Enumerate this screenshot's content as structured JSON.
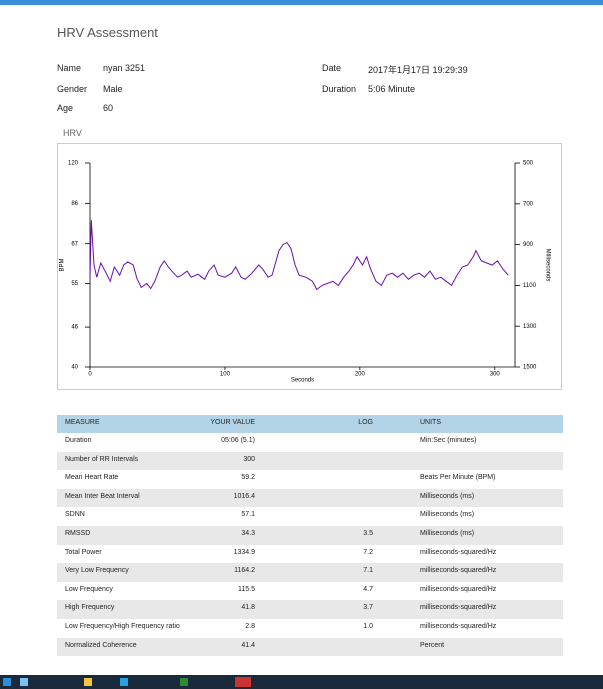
{
  "header": {
    "title": "HRV Assessment"
  },
  "info": [
    {
      "label": "Name",
      "value": "nyan 3251"
    },
    {
      "label": "Date",
      "value": "2017年1月17日 19:29:39"
    },
    {
      "label": "Gender",
      "value": "Male"
    },
    {
      "label": "Duration",
      "value": "5:06 Minute"
    },
    {
      "label": "Age",
      "value": "60"
    }
  ],
  "chart_data": {
    "type": "line",
    "title": "HRV",
    "x_label": "Seconds",
    "y_label": "BPM",
    "y2_label": "Milliseconds",
    "y_scale": "reciprocal",
    "xlim": [
      0,
      315
    ],
    "xticks": [
      0,
      100,
      200,
      300
    ],
    "ylim": [
      40,
      120
    ],
    "yticks": [
      120,
      86,
      67,
      55,
      46,
      40
    ],
    "y2lim": [
      1500,
      500
    ],
    "y2ticks": [
      500,
      700,
      900,
      1100,
      1300,
      1500
    ],
    "x": [
      0,
      1,
      3,
      5,
      8,
      12,
      15,
      18,
      22,
      25,
      28,
      32,
      35,
      38,
      42,
      45,
      48,
      52,
      55,
      58,
      62,
      65,
      68,
      72,
      75,
      80,
      85,
      88,
      92,
      95,
      100,
      105,
      108,
      112,
      115,
      120,
      125,
      128,
      132,
      135,
      140,
      143,
      146,
      149,
      152,
      155,
      160,
      165,
      168,
      172,
      176,
      180,
      184,
      188,
      192,
      195,
      198,
      202,
      205,
      208,
      212,
      216,
      220,
      224,
      228,
      232,
      236,
      240,
      244,
      248,
      252,
      256,
      260,
      264,
      268,
      272,
      276,
      280,
      284,
      286,
      290,
      294,
      298,
      302,
      306,
      310
    ],
    "series": [
      {
        "name": "RR",
        "axis": "y2",
        "color": "#6a0dad",
        "values": [
          1060,
          780,
          1000,
          1060,
          990,
          1040,
          1080,
          1010,
          1050,
          1000,
          985,
          1000,
          1070,
          1110,
          1090,
          1115,
          1080,
          1010,
          980,
          1010,
          1040,
          1060,
          1050,
          1030,
          1060,
          1045,
          1070,
          1030,
          1000,
          1050,
          1060,
          1040,
          1010,
          1060,
          1070,
          1040,
          1000,
          1020,
          1060,
          1050,
          930,
          900,
          890,
          920,
          1000,
          1050,
          1060,
          1080,
          1120,
          1100,
          1090,
          1080,
          1100,
          1060,
          1030,
          1000,
          960,
          1000,
          960,
          1020,
          1080,
          1100,
          1050,
          1040,
          1060,
          1040,
          1070,
          1050,
          1040,
          1060,
          1030,
          1070,
          1060,
          1080,
          1100,
          1050,
          1010,
          1000,
          960,
          930,
          980,
          990,
          1000,
          980,
          1020,
          1050
        ]
      }
    ]
  },
  "table": {
    "header": [
      "MEASURE",
      "YOUR VALUE",
      "LOG",
      "UNITS"
    ],
    "rows": [
      [
        "Duration",
        "05:06 (5.1)",
        null,
        "Min:Sec (minutes)"
      ],
      [
        "Number of RR Intervals",
        "300",
        null,
        null
      ],
      [
        "Mean Heart Rate",
        "59.2",
        null,
        "Beats Per Minute (BPM)"
      ],
      [
        "Mean Inter Beat Interval",
        "1016.4",
        null,
        "Milliseconds (ms)"
      ],
      [
        "SDNN",
        "57.1",
        null,
        "Milliseconds (ms)"
      ],
      [
        "RMSSD",
        "34.3",
        "3.5",
        "Milliseconds (ms)"
      ],
      [
        "Total Power",
        "1334.9",
        "7.2",
        "milliseconds-squared/Hz"
      ],
      [
        "Very Low Frequency",
        "1164.2",
        "7.1",
        "milliseconds-squared/Hz"
      ],
      [
        "Low Frequency",
        "115.5",
        "4.7",
        "milliseconds-squared/Hz"
      ],
      [
        "High Frequency",
        "41.8",
        "3.7",
        "milliseconds-squared/Hz"
      ],
      [
        "Low Frequency/High Frequency ratio",
        "2.8",
        "1.0",
        "milliseconds-squared/Hz"
      ],
      [
        "Normalized Coherence",
        "41.4",
        null,
        "Percent"
      ]
    ]
  }
}
